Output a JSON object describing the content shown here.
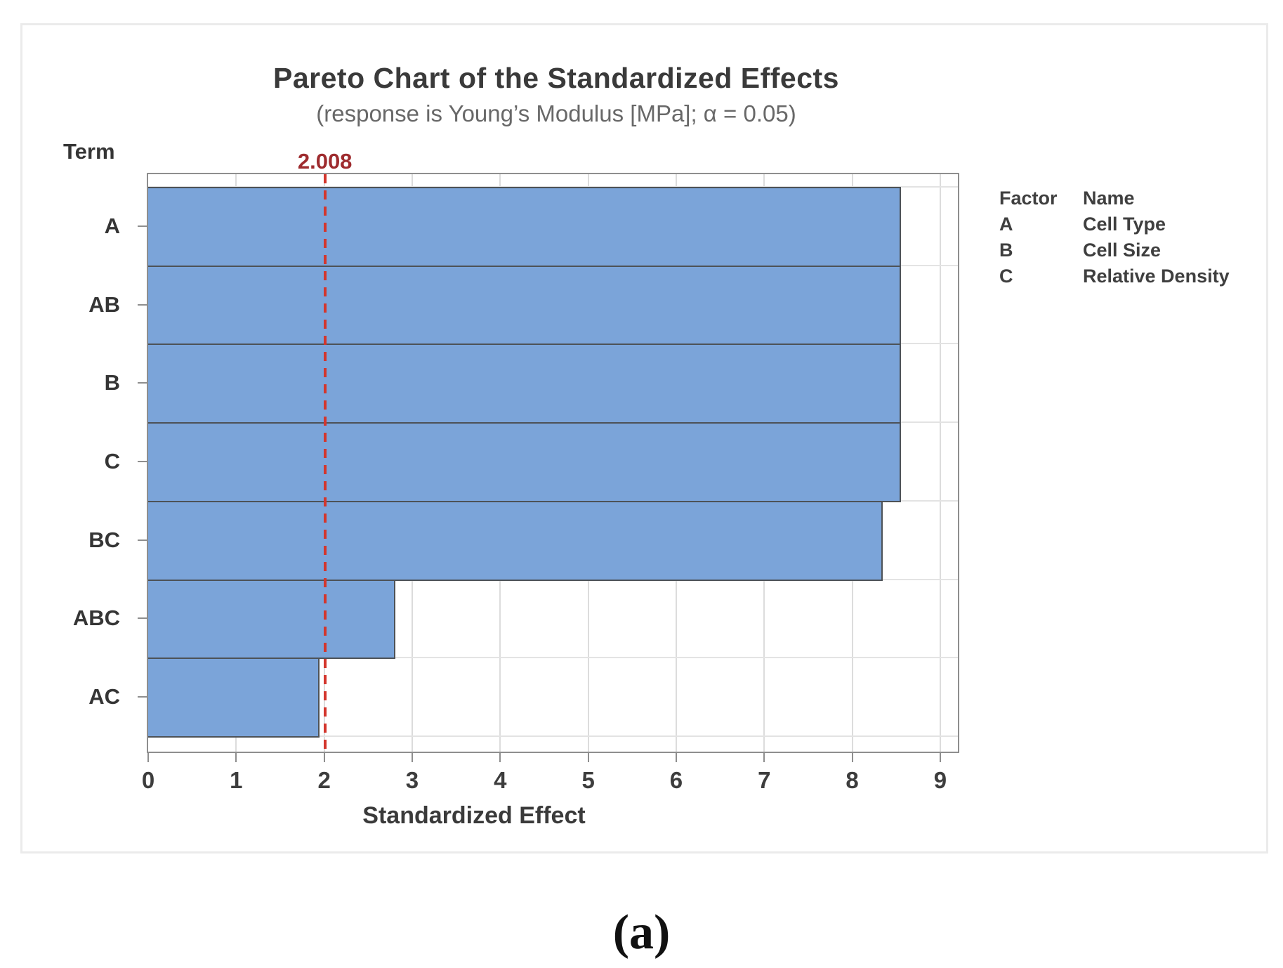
{
  "page": {
    "caption": "(a)"
  },
  "chart": {
    "title": "Pareto Chart of the Standardized Effects",
    "subtitle": "(response is Young’s Modulus [MPa]; α = 0.05)",
    "term_header": "Term"
  },
  "chart_data": {
    "type": "bar",
    "orientation": "horizontal",
    "title": "Pareto Chart of the Standardized Effects",
    "subtitle": "(response is Young’s Modulus [MPa]; α = 0.05)",
    "categories": [
      "A",
      "AB",
      "B",
      "C",
      "BC",
      "ABC",
      "AC"
    ],
    "values": [
      8.55,
      8.55,
      8.55,
      8.55,
      8.35,
      2.81,
      1.95
    ],
    "xlabel": "Standardized Effect",
    "ylabel": "Term",
    "xlim": [
      0,
      9.2
    ],
    "x_ticks": [
      0,
      1,
      2,
      3,
      4,
      5,
      6,
      7,
      8,
      9
    ],
    "grid": true,
    "legend_position": "right",
    "reference_line_value": 2.008,
    "reference_line_label": "2.008",
    "bar_color": "#7ba4d9",
    "bar_border_color": "#4d5257",
    "reference_line_color": "#d3362d",
    "reference_label_color": "#9e2b2e"
  },
  "legend": {
    "header": {
      "factor": "Factor",
      "name": "Name"
    },
    "rows": [
      {
        "factor": "A",
        "name": "Cell Type"
      },
      {
        "factor": "B",
        "name": "Cell Size"
      },
      {
        "factor": "C",
        "name": "Relative Density"
      }
    ]
  }
}
